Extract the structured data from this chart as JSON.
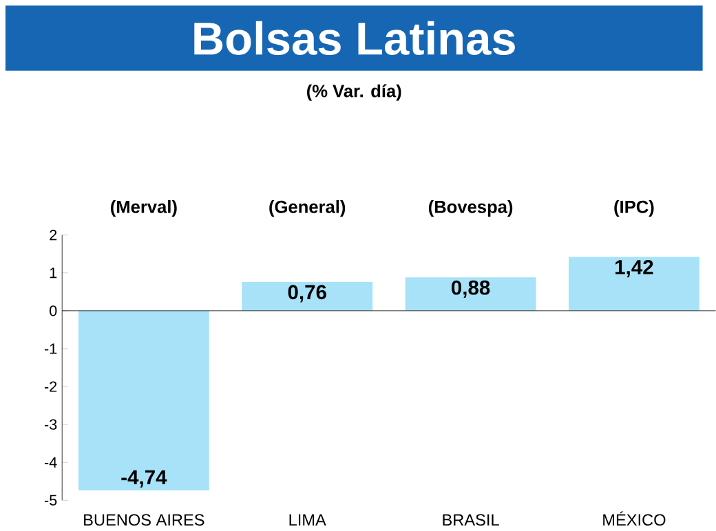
{
  "chart_data": {
    "type": "bar",
    "title": "Bolsas Latinas",
    "subtitle": "(% Var. día)",
    "categories": [
      "BUENOS AIRES",
      "LIMA",
      "BRASIL",
      "MÉXICO"
    ],
    "values": [
      -4.74,
      0.76,
      0.88,
      1.42
    ],
    "value_labels": [
      "-4,74",
      "0,76",
      "0,88",
      "1,42"
    ],
    "color": "#a8e2f8",
    "annotations": [
      "(Merval)",
      "(General)",
      "(Bovespa)",
      "(IPC)"
    ],
    "ylim": [
      -5,
      2
    ],
    "yticks": [
      -5,
      -4,
      -3,
      -2,
      -1,
      0,
      1,
      2
    ]
  }
}
